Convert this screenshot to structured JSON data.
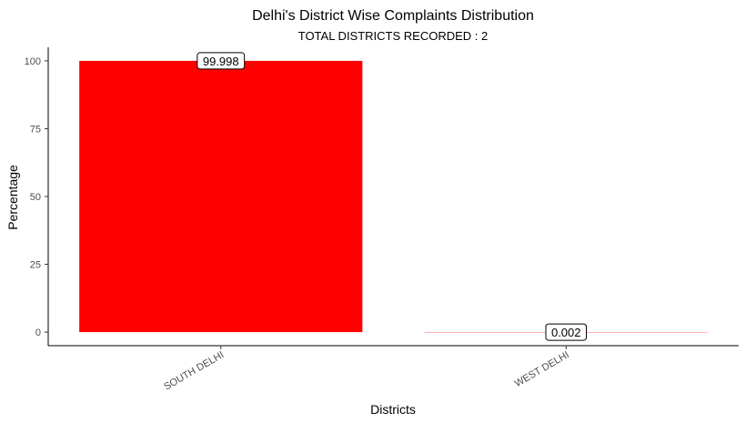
{
  "chart_data": {
    "type": "bar",
    "title": "Delhi's District Wise Complaints Distribution",
    "subtitle": "TOTAL DISTRICTS RECORDED : 2",
    "xlabel": "Districts",
    "ylabel": "Percentage",
    "categories": [
      "SOUTH DELHI",
      "WEST DELHI"
    ],
    "values": [
      99.998,
      0.002
    ],
    "data_labels": [
      "99.998",
      "0.002"
    ],
    "ylim": [
      -5,
      105
    ],
    "yticks": [
      0,
      25,
      50,
      75,
      100
    ],
    "grid": false,
    "legend": "none",
    "bar_color": "#ff0000"
  }
}
